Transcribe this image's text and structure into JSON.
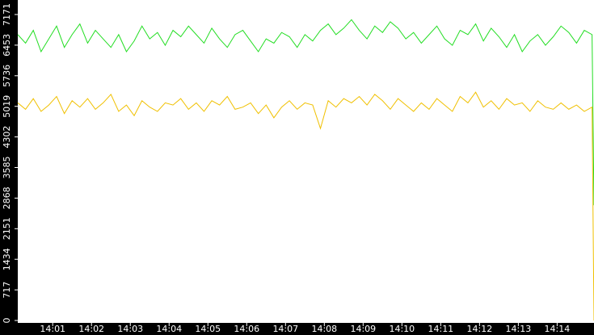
{
  "chart_data": {
    "type": "line",
    "x": [
      0.1,
      0.3,
      0.5,
      0.7,
      0.9,
      1.1,
      1.3,
      1.5,
      1.7,
      1.9,
      2.1,
      2.3,
      2.5,
      2.7,
      2.9,
      3.1,
      3.3,
      3.5,
      3.7,
      3.9,
      4.1,
      4.3,
      4.5,
      4.7,
      4.9,
      5.1,
      5.3,
      5.5,
      5.7,
      5.9,
      6.1,
      6.3,
      6.5,
      6.7,
      6.9,
      7.1,
      7.3,
      7.5,
      7.7,
      7.9,
      8.1,
      8.3,
      8.5,
      8.7,
      8.9,
      9.1,
      9.3,
      9.5,
      9.7,
      9.9,
      10.1,
      10.3,
      10.5,
      10.7,
      10.9,
      11.1,
      11.3,
      11.5,
      11.7,
      11.9,
      12.1,
      12.3,
      12.5,
      12.7,
      12.9,
      13.1,
      13.3,
      13.5,
      13.7,
      13.9,
      14.1,
      14.3,
      14.5,
      14.7,
      14.9,
      14.95
    ],
    "series": [
      {
        "color": "#22dd22",
        "values": [
          6700,
          6500,
          6800,
          6300,
          6600,
          6900,
          6400,
          6700,
          6950,
          6500,
          6800,
          6600,
          6400,
          6700,
          6300,
          6550,
          6900,
          6600,
          6750,
          6450,
          6800,
          6650,
          6900,
          6700,
          6500,
          6850,
          6600,
          6400,
          6700,
          6800,
          6550,
          6300,
          6600,
          6500,
          6750,
          6650,
          6400,
          6700,
          6550,
          6800,
          6950,
          6700,
          6850,
          7050,
          6800,
          6600,
          6900,
          6750,
          7000,
          6850,
          6600,
          6750,
          6500,
          6700,
          6900,
          6600,
          6450,
          6800,
          6700,
          6950,
          6550,
          6850,
          6650,
          6400,
          6700,
          6300,
          6550,
          6700,
          6450,
          6650,
          6900,
          6750,
          6500,
          6800,
          6700,
          2700
        ]
      },
      {
        "color": "#f0c000",
        "values": [
          5100,
          4950,
          5200,
          4900,
          5050,
          5250,
          4850,
          5150,
          5000,
          5200,
          4950,
          5100,
          5300,
          4900,
          5050,
          4800,
          5150,
          5000,
          4900,
          5100,
          5050,
          5200,
          4950,
          5100,
          4900,
          5150,
          5050,
          5250,
          4950,
          5000,
          5100,
          4850,
          5050,
          4750,
          5000,
          5150,
          4950,
          5100,
          5050,
          4500,
          5150,
          5000,
          5200,
          5100,
          5250,
          5050,
          5300,
          5150,
          4950,
          5200,
          5050,
          4900,
          5100,
          4950,
          5200,
          5050,
          4900,
          5250,
          5100,
          5350,
          5000,
          5150,
          4950,
          5200,
          5050,
          5100,
          4900,
          5150,
          5000,
          4950,
          5100,
          4950,
          5050,
          4900,
          5000,
          0
        ]
      }
    ],
    "xlim": [
      0.1,
      14.95
    ],
    "xticks": [
      {
        "value": 1,
        "label": "14:01"
      },
      {
        "value": 2,
        "label": "14:02"
      },
      {
        "value": 3,
        "label": "14:03"
      },
      {
        "value": 4,
        "label": "14:04"
      },
      {
        "value": 5,
        "label": "14:05"
      },
      {
        "value": 6,
        "label": "14:06"
      },
      {
        "value": 7,
        "label": "14:07"
      },
      {
        "value": 8,
        "label": "14:08"
      },
      {
        "value": 9,
        "label": "14:09"
      },
      {
        "value": 10,
        "label": "14:10"
      },
      {
        "value": 11,
        "label": "14:11"
      },
      {
        "value": 12,
        "label": "14:12"
      },
      {
        "value": 13,
        "label": "14:13"
      },
      {
        "value": 14,
        "label": "14:14"
      }
    ],
    "ylim": [
      0,
      7511
    ],
    "yticks": [
      0,
      717,
      1434,
      2151,
      2868,
      3585,
      4302,
      5019,
      5736,
      6453,
      7171
    ]
  }
}
